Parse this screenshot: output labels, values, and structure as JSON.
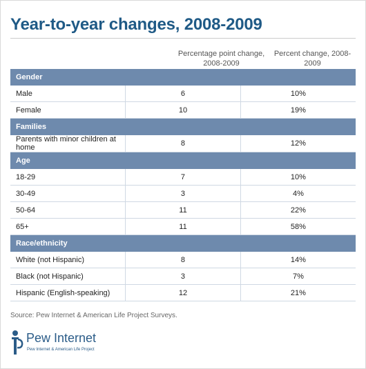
{
  "title": "Year-to-year changes, 2008-2009",
  "columns": {
    "col1": "Percentage point change, 2008-2009",
    "col2": "Percent change, 2008-2009"
  },
  "chart_data": {
    "type": "table",
    "title": "Year-to-year changes, 2008-2009",
    "columns": [
      "Percentage point change, 2008-2009",
      "Percent change, 2008-2009"
    ],
    "groups": [
      {
        "name": "Gender",
        "rows": [
          {
            "label": "Male",
            "pp": "6",
            "pct": "10%"
          },
          {
            "label": "Female",
            "pp": "10",
            "pct": "19%"
          }
        ]
      },
      {
        "name": "Families",
        "rows": [
          {
            "label": "Parents with minor children at home",
            "pp": "8",
            "pct": "12%"
          }
        ]
      },
      {
        "name": "Age",
        "rows": [
          {
            "label": "18-29",
            "pp": "7",
            "pct": "10%"
          },
          {
            "label": "30-49",
            "pp": "3",
            "pct": "4%"
          },
          {
            "label": "50-64",
            "pp": "11",
            "pct": "22%"
          },
          {
            "label": "65+",
            "pp": "11",
            "pct": "58%"
          }
        ]
      },
      {
        "name": "Race/ethnicity",
        "rows": [
          {
            "label": "White (not Hispanic)",
            "pp": "8",
            "pct": "14%"
          },
          {
            "label": "Black (not Hispanic)",
            "pp": "3",
            "pct": "7%"
          },
          {
            "label": "Hispanic (English-speaking)",
            "pp": "12",
            "pct": "21%"
          }
        ]
      }
    ]
  },
  "source": "Source: Pew Internet & American Life Project Surveys.",
  "logo": {
    "name": "Pew Internet",
    "tagline": "Pew Internet & American Life Project"
  },
  "colors": {
    "title": "#1f5a86",
    "section_header": "#6e8aad",
    "row_border": "#cfd8e3"
  }
}
